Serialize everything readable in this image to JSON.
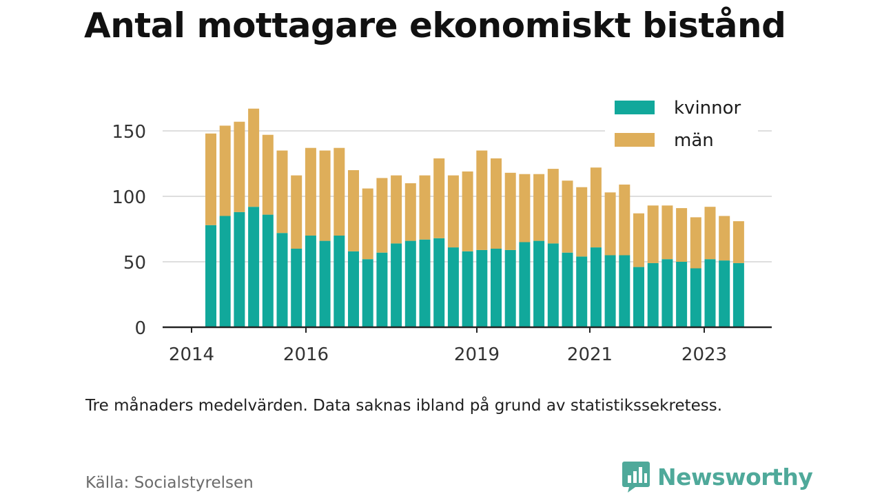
{
  "title": "Antal mottagare ekonomiskt bistånd",
  "note": "Tre månaders medelvärden. Data saknas ibland på grund av statistikssekretess.",
  "source": "Källa: Socialstyrelsen",
  "brand": {
    "name": "Newsworthy",
    "icon": "newsworthy-logo-icon",
    "color": "#4fa99a"
  },
  "chart_data": {
    "type": "bar",
    "stacked": true,
    "x_tick_labels": [
      "2014",
      "2016",
      "2019",
      "2021",
      "2023"
    ],
    "y_tick_labels": [
      "0",
      "50",
      "100",
      "150"
    ],
    "ylim": [
      0,
      170
    ],
    "grid": true,
    "legend_position": "top-right",
    "series": [
      {
        "name": "kvinnor",
        "color": "#11a89b",
        "values": [
          78,
          85,
          88,
          92,
          86,
          72,
          60,
          70,
          66,
          70,
          58,
          52,
          57,
          64,
          66,
          67,
          68,
          61,
          58,
          59,
          60,
          59,
          65,
          66,
          64,
          57,
          54,
          61,
          55,
          55,
          46,
          49,
          52,
          50,
          45,
          52,
          51,
          49
        ]
      },
      {
        "name": "män",
        "color": "#deae5a",
        "values": [
          70,
          69,
          69,
          75,
          61,
          63,
          56,
          67,
          69,
          67,
          62,
          54,
          57,
          52,
          44,
          49,
          61,
          55,
          61,
          76,
          69,
          59,
          52,
          51,
          57,
          55,
          53,
          61,
          48,
          54,
          41,
          44,
          41,
          41,
          39,
          40,
          34,
          32
        ]
      }
    ]
  }
}
